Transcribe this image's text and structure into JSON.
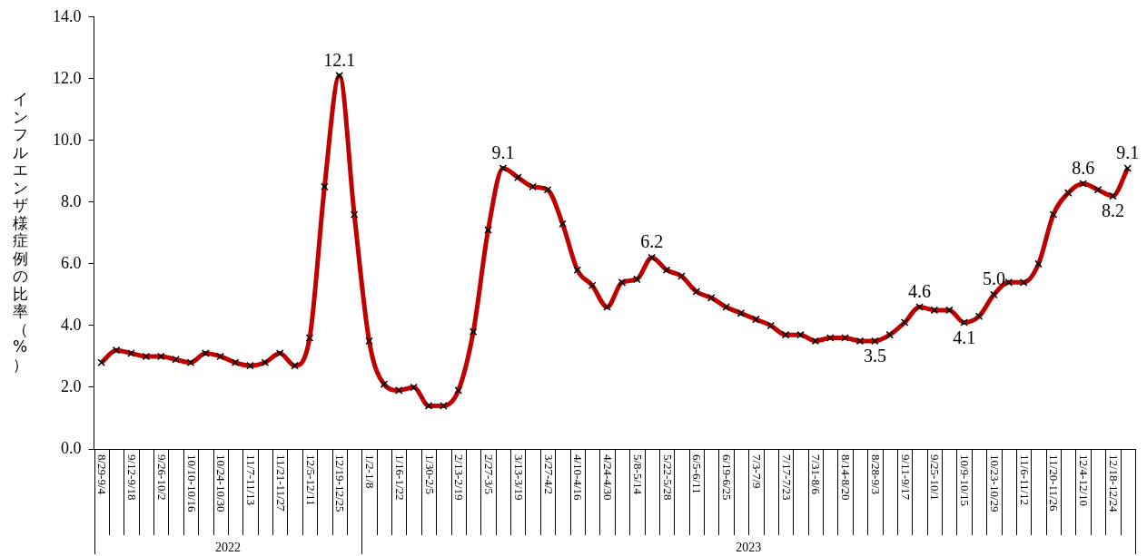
{
  "chart_data": {
    "type": "line",
    "ylabel": "インフルエンザ様症例の比率（%）",
    "categories": [
      "8/29-9/4",
      null,
      "9/12-9/18",
      null,
      "9/26-10/2",
      null,
      "10/10-10/16",
      null,
      "10/24-10/30",
      null,
      "11/7-11/13",
      null,
      "11/21-11/27",
      null,
      "12/5-12/11",
      null,
      "12/19-12/25",
      null,
      "1/2-1/8",
      null,
      "1/16-1/22",
      null,
      "1/30-2/5",
      null,
      "2/13-2/19",
      null,
      "2/27-3/5",
      null,
      "3/13-3/19",
      null,
      "3/27-4/2",
      null,
      "4/10-4/16",
      null,
      "4/24-4/30",
      null,
      "5/8-5/14",
      null,
      "5/22-5/28",
      null,
      "6/5-6/11",
      null,
      "6/19-6/25",
      null,
      "7/3-7/9",
      null,
      "7/17-7/23",
      null,
      "7/31-8/6",
      null,
      "8/14-8/20",
      null,
      "8/28-9/3",
      null,
      "9/11-9/17",
      null,
      "9/25-10/1",
      null,
      "10/9-10/15",
      null,
      "10/23-10/29",
      null,
      "11/6-11/12",
      null,
      "11/20-11/26",
      null,
      "12/4-12/10",
      null,
      "12/18-12/24",
      null
    ],
    "series": [
      {
        "color": "#c00000",
        "values": [
          2.8,
          3.2,
          3.1,
          3.0,
          3.0,
          2.9,
          2.8,
          3.1,
          3.0,
          2.8,
          2.7,
          2.8,
          3.1,
          2.7,
          3.6,
          8.5,
          12.1,
          7.6,
          3.5,
          2.1,
          1.9,
          2.0,
          1.4,
          1.4,
          1.9,
          3.8,
          7.1,
          9.1,
          8.8,
          8.5,
          8.4,
          7.3,
          5.8,
          5.3,
          4.6,
          5.4,
          5.5,
          6.2,
          5.8,
          5.6,
          5.1,
          4.9,
          4.6,
          4.4,
          4.2,
          4.0,
          3.7,
          3.7,
          3.5,
          3.6,
          3.6,
          3.5,
          3.5,
          3.7,
          4.1,
          4.6,
          4.5,
          4.5,
          4.1,
          4.3,
          5.0,
          5.4,
          5.4,
          6.0,
          7.6,
          8.3,
          8.6,
          8.4,
          8.2,
          9.1
        ],
        "value_labels": [
          null,
          null,
          null,
          null,
          null,
          null,
          null,
          null,
          null,
          null,
          null,
          null,
          null,
          null,
          null,
          null,
          "12.1",
          null,
          null,
          null,
          null,
          null,
          null,
          null,
          null,
          null,
          null,
          "9.1",
          null,
          null,
          null,
          null,
          null,
          null,
          null,
          null,
          null,
          "6.2",
          null,
          null,
          null,
          null,
          null,
          null,
          null,
          null,
          null,
          null,
          null,
          null,
          null,
          null,
          "3.5",
          null,
          null,
          "4.6",
          null,
          null,
          "4.1",
          null,
          "5.0",
          null,
          null,
          null,
          null,
          null,
          "8.6",
          null,
          "8.2",
          "9.1"
        ]
      }
    ],
    "ylim": [
      0,
      14
    ],
    "yticks": [
      {
        "value": 0,
        "label": "0.0"
      },
      {
        "value": 2,
        "label": "2.0"
      },
      {
        "value": 4,
        "label": "4.0"
      },
      {
        "value": 6,
        "label": "6.0"
      },
      {
        "value": 8,
        "label": "8.0"
      },
      {
        "value": 10,
        "label": "10.0"
      },
      {
        "value": 12,
        "label": "12.0"
      },
      {
        "value": 14,
        "label": "14.0"
      }
    ],
    "grid": false,
    "legend": false,
    "marker": "cross",
    "line_style": "solid",
    "annotations": [
      "2022",
      "2023"
    ]
  }
}
